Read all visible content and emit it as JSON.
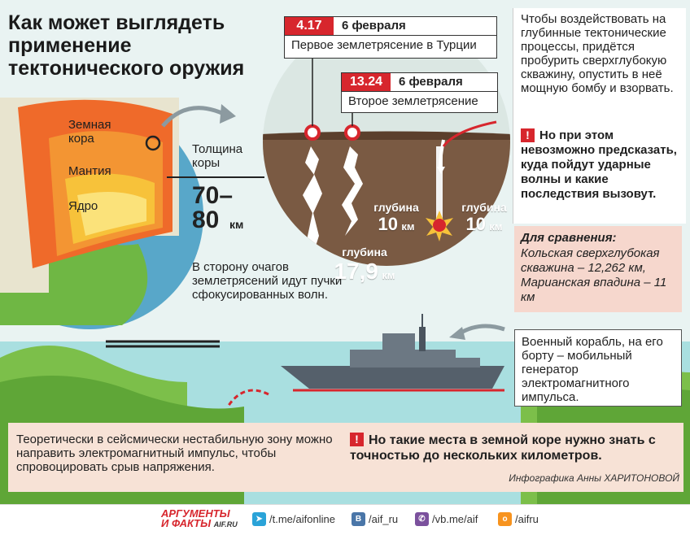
{
  "title": "Как может выглядеть применение тектонического оружия",
  "earth_layers": {
    "crust": "Земная кора",
    "mantle": "Мантия",
    "core": "Ядро"
  },
  "crust_thickness": {
    "label": "Толщина коры",
    "value": "70–80",
    "unit": "км"
  },
  "waves_note": "В сторону очагов землетрясений идут пучки сфокусированных волн.",
  "event1": {
    "magnitude": "4.17",
    "date": "6 февраля",
    "name": "Первое землетрясение в Турции"
  },
  "event2": {
    "magnitude": "13.24",
    "date": "6 февраля",
    "name": "Второе землетрясение"
  },
  "depths": [
    {
      "label": "глубина",
      "value": "10",
      "unit": "км"
    },
    {
      "label": "глубина",
      "value": "17,9",
      "unit": "км"
    },
    {
      "label": "глубина",
      "value": "10",
      "unit": "км"
    }
  ],
  "right_text": "Чтобы воздействовать на глубинные тектонические процессы, придётся пробурить сверхглубокую скважину, опустить в неё мощную бомбу и взорвать.",
  "warning1": "Но при этом невозможно предсказать, куда пойдут ударные волны и какие последствия вызовут.",
  "comparison": {
    "heading": "Для сравнения:",
    "text": "Кольская сверхглубокая скважина – 12,262 км, Марианская впадина – 11 км"
  },
  "ship_note": "Военный корабль, на его борту – мобильный генератор электромагнитного импульса.",
  "bottom_left": "Теоретически в сейсмически нестабильную зону можно направить электромагнитный импульс, чтобы спровоцировать срыв напряжения.",
  "warning2": "Но такие места в земной коре нужно знать с точностью до нескольких километров.",
  "credit": "Инфографика Анны ХАРИТОНОВОЙ",
  "footer": {
    "logo_top": "АРГУМЕНТЫ",
    "logo_bottom": "И ФАКТЫ",
    "logo_site": "AIF.RU",
    "telegram": "/t.me/aifonline",
    "vk": "/aif_ru",
    "viber": "/vb.me/aif",
    "ok": "/aifru"
  },
  "colors": {
    "accent": "#d7262d",
    "soil": "#7a5a43",
    "sea": "#a8dfe0",
    "land": "#7cbf4a"
  }
}
